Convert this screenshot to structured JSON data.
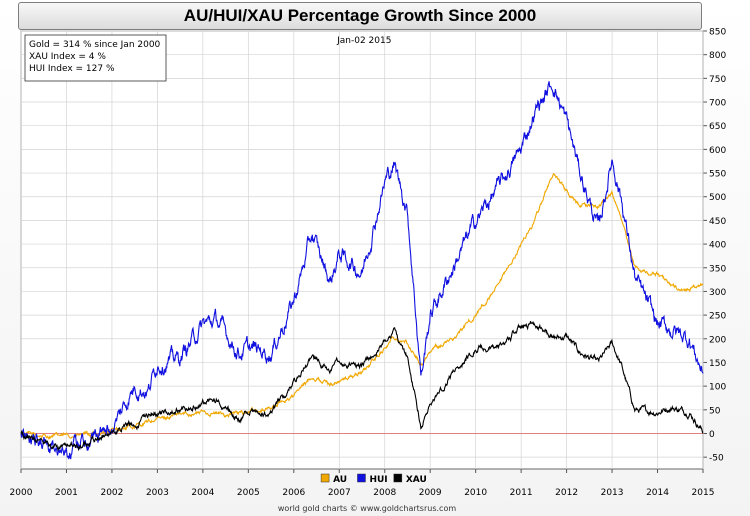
{
  "chart_data": {
    "type": "line",
    "title": "AU/HUI/XAU Percentage Growth Since 2000",
    "date_label": "Jan-02 2015",
    "info_lines": [
      "Gold = 314 % since Jan 2000",
      "XAU Index = 4 %",
      "HUI Index = 127 %"
    ],
    "footer": "world gold charts © www.goldchartsrus.com",
    "xlim": [
      2000,
      2015
    ],
    "x_ticks": [
      "2000",
      "2001",
      "2002",
      "2003",
      "2004",
      "2005",
      "2006",
      "2007",
      "2008",
      "2009",
      "2010",
      "2011",
      "2012",
      "2013",
      "2014",
      "2015"
    ],
    "ylim": [
      -75,
      850
    ],
    "y_ticks": [
      -50,
      0,
      50,
      100,
      150,
      200,
      250,
      300,
      350,
      400,
      450,
      500,
      550,
      600,
      650,
      700,
      750,
      800,
      850
    ],
    "grid": true,
    "legend_position": "bottom-center",
    "series": [
      {
        "name": "AU",
        "color": "#f0a800",
        "x": [
          2000,
          2000.5,
          2001,
          2001.5,
          2002,
          2002.5,
          2003,
          2003.5,
          2004,
          2004.5,
          2005,
          2005.5,
          2006,
          2006.4,
          2006.8,
          2007,
          2007.5,
          2008,
          2008.2,
          2008.5,
          2008.8,
          2009,
          2009.5,
          2010,
          2010.5,
          2011,
          2011.3,
          2011.7,
          2012,
          2012.3,
          2012.7,
          2013,
          2013.3,
          2013.5,
          2014,
          2014.5,
          2015
        ],
        "values": [
          0,
          -5,
          -5,
          -3,
          5,
          15,
          30,
          40,
          45,
          40,
          45,
          55,
          80,
          120,
          105,
          110,
          130,
          180,
          205,
          190,
          145,
          175,
          200,
          250,
          310,
          400,
          450,
          550,
          510,
          480,
          480,
          510,
          420,
          350,
          335,
          300,
          314
        ]
      },
      {
        "name": "HUI",
        "color": "#1010e0",
        "x": [
          2000,
          2000.5,
          2000.9,
          2001.5,
          2002,
          2002.5,
          2002.8,
          2003,
          2003.5,
          2004,
          2004.3,
          2004.8,
          2005,
          2005.5,
          2006,
          2006.4,
          2006.8,
          2007,
          2007.5,
          2008,
          2008.2,
          2008.5,
          2008.8,
          2009,
          2009.5,
          2010,
          2010.5,
          2011,
          2011.3,
          2011.7,
          2012,
          2012.3,
          2012.7,
          2013,
          2013.2,
          2013.5,
          2014,
          2014.3,
          2014.7,
          2015
        ],
        "values": [
          0,
          -20,
          -40,
          -15,
          10,
          100,
          90,
          150,
          160,
          230,
          240,
          170,
          180,
          170,
          280,
          420,
          320,
          380,
          340,
          530,
          570,
          470,
          120,
          250,
          350,
          450,
          520,
          600,
          680,
          740,
          660,
          550,
          430,
          580,
          500,
          330,
          230,
          220,
          200,
          127
        ]
      },
      {
        "name": "XAU",
        "color": "#000000",
        "x": [
          2000,
          2000.5,
          2000.9,
          2001.5,
          2002,
          2002.5,
          2003,
          2003.5,
          2004,
          2004.3,
          2004.8,
          2005,
          2005.5,
          2006,
          2006.4,
          2006.8,
          2007,
          2007.5,
          2008,
          2008.2,
          2008.5,
          2008.8,
          2009,
          2009.5,
          2010,
          2010.5,
          2011,
          2011.3,
          2011.7,
          2012,
          2012.3,
          2012.7,
          2013,
          2013.2,
          2013.5,
          2014,
          2014.3,
          2014.7,
          2015
        ],
        "values": [
          0,
          -20,
          -30,
          -20,
          5,
          20,
          45,
          50,
          65,
          70,
          30,
          45,
          40,
          110,
          160,
          130,
          150,
          140,
          195,
          215,
          160,
          15,
          60,
          130,
          180,
          180,
          225,
          235,
          200,
          205,
          170,
          150,
          190,
          145,
          50,
          45,
          55,
          45,
          4
        ]
      }
    ]
  }
}
